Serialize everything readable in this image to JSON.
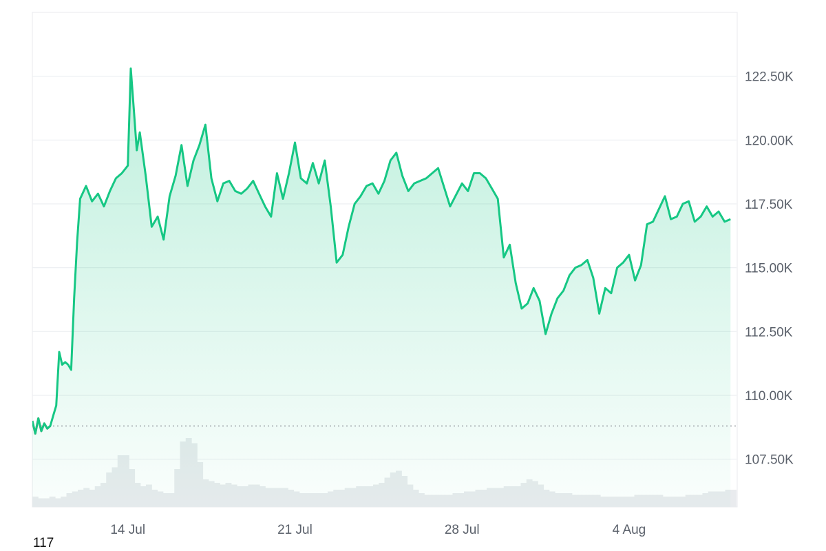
{
  "chart_data": {
    "type": "area",
    "title": "",
    "xlabel": "",
    "ylabel": "",
    "x_range": [
      "2025-07-10",
      "2025-08-08"
    ],
    "ylim": [
      106250,
      124999
    ],
    "y_ticks": [
      107500,
      110000,
      112500,
      115000,
      117500,
      120000,
      122500
    ],
    "y_tick_labels": [
      "107.50K",
      "110.00K",
      "112.50K",
      "115.00K",
      "117.50K",
      "120.00K",
      "122.50K"
    ],
    "x_ticks": [
      "2025-07-14",
      "2025-07-21",
      "2025-07-28",
      "2025-08-04"
    ],
    "x_tick_labels": [
      "14 Jul",
      "21 Jul",
      "28 Jul",
      "4 Aug"
    ],
    "baseline": 108800,
    "grid": true,
    "colors": {
      "up": "#16c784",
      "down": "#ea3943",
      "fill": "#16c784",
      "volume": "#e9ebee",
      "grid": "#edeff2",
      "baseline": "#9aa0a6"
    },
    "series": [
      {
        "x": [
          "2025-07-10T00:00",
          "2025-07-10T03:00",
          "2025-07-10T06:00",
          "2025-07-10T09:00",
          "2025-07-10T12:00",
          "2025-07-10T15:00",
          "2025-07-10T18:00",
          "2025-07-10T21:00",
          "2025-07-11T00:00",
          "2025-07-11T03:00",
          "2025-07-11T06:00",
          "2025-07-11T09:00",
          "2025-07-11T12:00",
          "2025-07-11T15:00",
          "2025-07-11T18:00",
          "2025-07-11T21:00",
          "2025-07-12T00:00",
          "2025-07-12T06:00",
          "2025-07-12T12:00",
          "2025-07-12T18:00",
          "2025-07-13T00:00",
          "2025-07-13T06:00",
          "2025-07-13T12:00",
          "2025-07-13T18:00",
          "2025-07-14T00:00",
          "2025-07-14T03:00",
          "2025-07-14T06:00",
          "2025-07-14T09:00",
          "2025-07-14T12:00",
          "2025-07-14T18:00",
          "2025-07-15T00:00",
          "2025-07-15T06:00",
          "2025-07-15T12:00",
          "2025-07-15T18:00",
          "2025-07-16T00:00",
          "2025-07-16T06:00",
          "2025-07-16T12:00",
          "2025-07-16T18:00",
          "2025-07-17T00:00",
          "2025-07-17T06:00",
          "2025-07-17T12:00",
          "2025-07-17T18:00",
          "2025-07-18T00:00",
          "2025-07-18T06:00",
          "2025-07-18T12:00",
          "2025-07-18T18:00",
          "2025-07-19T00:00",
          "2025-07-19T06:00",
          "2025-07-19T12:00",
          "2025-07-19T18:00",
          "2025-07-20T00:00",
          "2025-07-20T06:00",
          "2025-07-20T12:00",
          "2025-07-20T18:00",
          "2025-07-21T00:00",
          "2025-07-21T06:00",
          "2025-07-21T12:00",
          "2025-07-21T18:00",
          "2025-07-22T00:00",
          "2025-07-22T06:00",
          "2025-07-22T12:00",
          "2025-07-22T18:00",
          "2025-07-23T00:00",
          "2025-07-23T06:00",
          "2025-07-23T12:00",
          "2025-07-23T18:00",
          "2025-07-24T00:00",
          "2025-07-24T06:00",
          "2025-07-24T12:00",
          "2025-07-24T18:00",
          "2025-07-25T00:00",
          "2025-07-25T06:00",
          "2025-07-25T12:00",
          "2025-07-25T18:00",
          "2025-07-26T00:00",
          "2025-07-26T12:00",
          "2025-07-27T00:00",
          "2025-07-27T12:00",
          "2025-07-28T00:00",
          "2025-07-28T06:00",
          "2025-07-28T12:00",
          "2025-07-28T18:00",
          "2025-07-29T00:00",
          "2025-07-29T06:00",
          "2025-07-29T12:00",
          "2025-07-29T18:00",
          "2025-07-30T00:00",
          "2025-07-30T06:00",
          "2025-07-30T12:00",
          "2025-07-30T18:00",
          "2025-07-31T00:00",
          "2025-07-31T06:00",
          "2025-07-31T12:00",
          "2025-07-31T18:00",
          "2025-08-01T00:00",
          "2025-08-01T06:00",
          "2025-08-01T12:00",
          "2025-08-01T18:00",
          "2025-08-02T00:00",
          "2025-08-02T06:00",
          "2025-08-02T12:00",
          "2025-08-02T18:00",
          "2025-08-03T00:00",
          "2025-08-03T06:00",
          "2025-08-03T12:00",
          "2025-08-03T18:00",
          "2025-08-04T00:00",
          "2025-08-04T06:00",
          "2025-08-04T12:00",
          "2025-08-04T18:00",
          "2025-08-05T00:00",
          "2025-08-05T06:00",
          "2025-08-05T12:00",
          "2025-08-05T18:00",
          "2025-08-06T00:00",
          "2025-08-06T06:00",
          "2025-08-06T12:00",
          "2025-08-06T18:00",
          "2025-08-07T00:00",
          "2025-08-07T06:00",
          "2025-08-07T12:00",
          "2025-08-07T18:00",
          "2025-08-08T00:00",
          "2025-08-08T06:00"
        ],
        "values": [
          109000,
          108500,
          109100,
          108600,
          108900,
          108700,
          108800,
          109200,
          109600,
          111700,
          111200,
          111300,
          111200,
          111000,
          113800,
          116000,
          117700,
          118200,
          117600,
          117900,
          117400,
          118000,
          118500,
          118700,
          119000,
          122800,
          121200,
          119600,
          120300,
          118600,
          116600,
          117000,
          116100,
          117800,
          118600,
          119800,
          118200,
          119200,
          119800,
          120600,
          118500,
          117600,
          118300,
          118400,
          118000,
          117900,
          118100,
          118400,
          117900,
          117400,
          117000,
          118700,
          117700,
          118700,
          119900,
          118500,
          118300,
          119100,
          118300,
          119200,
          117400,
          115200,
          115500,
          116600,
          117500,
          117800,
          118200,
          118300,
          117900,
          118400,
          119200,
          119500,
          118600,
          118000,
          118300,
          118500,
          118900,
          117400,
          118300,
          118000,
          118700,
          118700,
          118500,
          118100,
          117700,
          115400,
          115900,
          114400,
          113400,
          113600,
          114200,
          113700,
          112400,
          113200,
          113800,
          114100,
          114700,
          115000,
          115100,
          115300,
          114600,
          113200,
          114200,
          114000,
          115000,
          115200,
          115500,
          114500,
          115100,
          116700,
          116800,
          117300,
          117800,
          116900,
          117000,
          117500,
          117600,
          116800,
          117000,
          117400,
          117000,
          117200,
          116800,
          116900
        ]
      }
    ],
    "volume": [
      0.06,
      0.05,
      0.05,
      0.06,
      0.05,
      0.06,
      0.08,
      0.09,
      0.1,
      0.11,
      0.1,
      0.12,
      0.14,
      0.2,
      0.23,
      0.3,
      0.3,
      0.22,
      0.14,
      0.12,
      0.13,
      0.1,
      0.09,
      0.08,
      0.08,
      0.22,
      0.38,
      0.4,
      0.37,
      0.26,
      0.16,
      0.15,
      0.14,
      0.13,
      0.14,
      0.13,
      0.12,
      0.12,
      0.13,
      0.13,
      0.12,
      0.11,
      0.11,
      0.11,
      0.11,
      0.1,
      0.09,
      0.08,
      0.08,
      0.08,
      0.08,
      0.08,
      0.09,
      0.1,
      0.1,
      0.11,
      0.11,
      0.12,
      0.12,
      0.12,
      0.13,
      0.14,
      0.17,
      0.2,
      0.21,
      0.18,
      0.13,
      0.1,
      0.08,
      0.07,
      0.07,
      0.07,
      0.07,
      0.07,
      0.08,
      0.08,
      0.09,
      0.09,
      0.1,
      0.1,
      0.11,
      0.11,
      0.11,
      0.12,
      0.12,
      0.12,
      0.14,
      0.16,
      0.15,
      0.13,
      0.1,
      0.09,
      0.08,
      0.08,
      0.08,
      0.07,
      0.07,
      0.07,
      0.07,
      0.07,
      0.06,
      0.06,
      0.06,
      0.06,
      0.06,
      0.06,
      0.07,
      0.07,
      0.07,
      0.07,
      0.07,
      0.06,
      0.06,
      0.06,
      0.06,
      0.07,
      0.07,
      0.07,
      0.08,
      0.09,
      0.09,
      0.09,
      0.1,
      0.1
    ]
  },
  "footer_label": "117"
}
